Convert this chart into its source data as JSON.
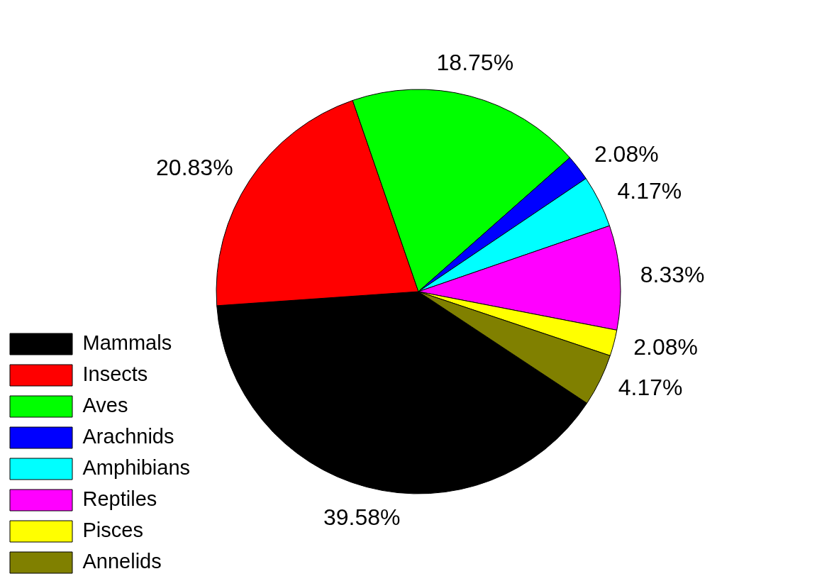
{
  "chart_data": {
    "type": "pie",
    "categories": [
      "Mammals",
      "Insects",
      "Aves",
      "Arachnids",
      "Amphibians",
      "Reptiles",
      "Pisces",
      "Annelids"
    ],
    "values": [
      39.58,
      20.83,
      18.75,
      2.08,
      4.17,
      8.33,
      2.08,
      4.17
    ],
    "colors": [
      "#000000",
      "#ff0000",
      "#00ff00",
      "#0000ff",
      "#00ffff",
      "#ff00ff",
      "#ffff00",
      "#808000"
    ],
    "value_labels": [
      "39.58%",
      "20.83%",
      "18.75%",
      "2.08%",
      "4.17%",
      "8.33%",
      "2.08%",
      "4.17%"
    ],
    "legend": "bottom left"
  }
}
